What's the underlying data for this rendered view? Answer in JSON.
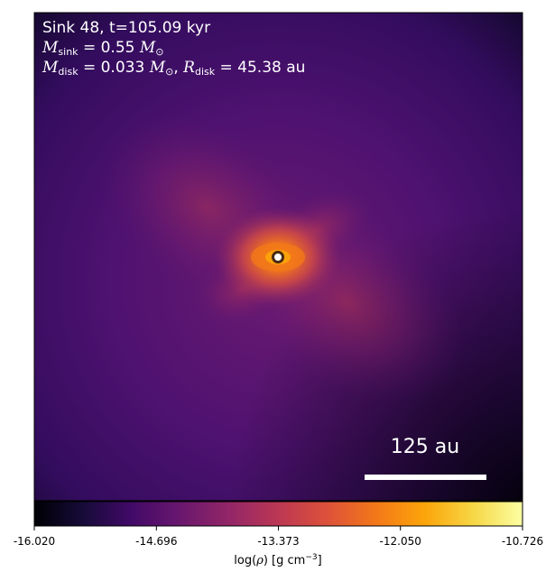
{
  "chart_data": {
    "type": "heatmap",
    "annotation": {
      "line1": "Sink 48, t=105.09 kyr",
      "m_sink_symbol": "M",
      "m_sink_sub": "sink",
      "m_sink_value": "= 0.55",
      "m_disk_symbol": "M",
      "m_disk_sub": "disk",
      "m_disk_value": "= 0.033",
      "r_disk_symbol": "R",
      "r_disk_sub": "disk",
      "r_disk_value": "= 45.38 au",
      "solar_symbol": "M",
      "solar_sub": "⊙"
    },
    "scale_bar": {
      "label": "125 au",
      "length_au": 125
    },
    "colorbar": {
      "colormap": "inferno",
      "range": [
        -16.02,
        -10.726
      ],
      "ticks": [
        "-16.020",
        "-14.696",
        "-13.373",
        "-12.050",
        "-10.726"
      ],
      "label_prefix": "log(",
      "label_rho": "ρ",
      "label_mid": ") [g cm",
      "label_exp": "−3",
      "label_suffix": "]"
    },
    "sink_marker": {
      "fill": "#ffffff",
      "edge": "#4a2a12"
    },
    "colors": {
      "background_low": "#2a0b50",
      "background_mid": "#5c1670",
      "core": "#f0642a",
      "peak": "#fcffa4"
    }
  }
}
